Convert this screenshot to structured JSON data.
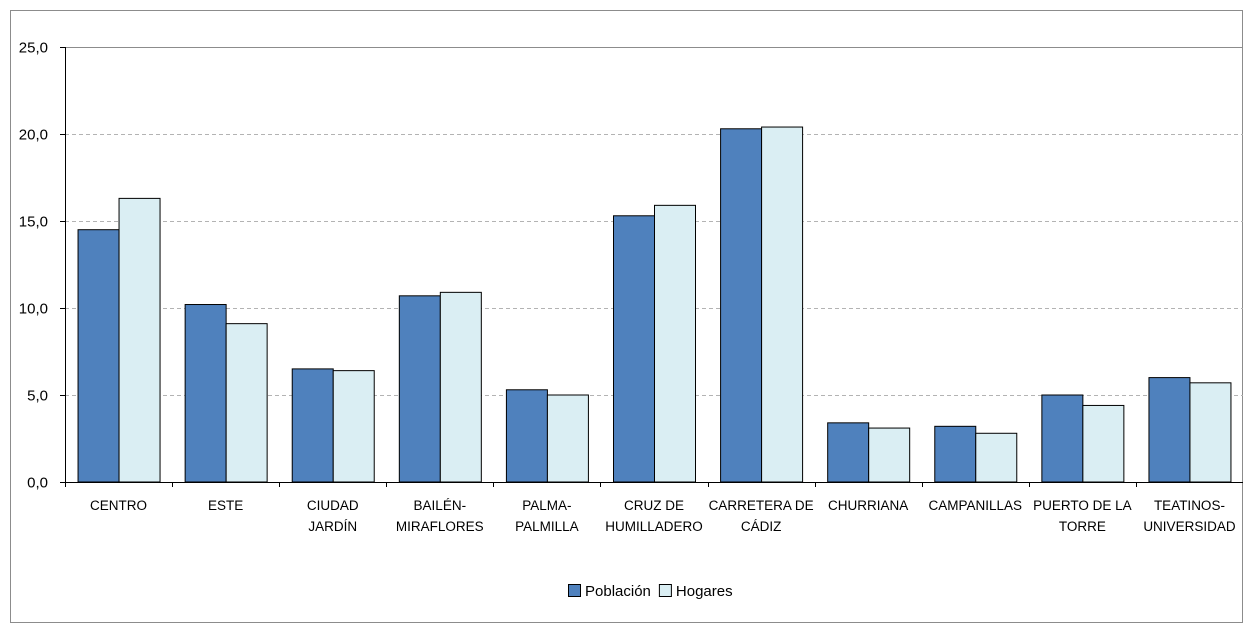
{
  "chart_data": {
    "type": "bar",
    "categories": [
      [
        "CENTRO"
      ],
      [
        "ESTE"
      ],
      [
        "CIUDAD",
        "JARDÍN"
      ],
      [
        "BAILÉN-",
        "MIRAFLORES"
      ],
      [
        "PALMA-",
        "PALMILLA"
      ],
      [
        "CRUZ DE",
        "HUMILLADERO"
      ],
      [
        "CARRETERA DE",
        "CÁDIZ"
      ],
      [
        "CHURRIANA"
      ],
      [
        "CAMPANILLAS"
      ],
      [
        "PUERTO DE LA",
        "TORRE"
      ],
      [
        "TEATINOS-",
        "UNIVERSIDAD"
      ]
    ],
    "series": [
      {
        "name": "Población",
        "color": "#4F81BD",
        "values": [
          14.5,
          10.2,
          6.5,
          10.7,
          5.3,
          15.3,
          20.3,
          3.4,
          3.2,
          5.0,
          6.0
        ]
      },
      {
        "name": "Hogares",
        "color": "#DAEEF3",
        "values": [
          16.3,
          9.1,
          6.4,
          10.9,
          5.0,
          15.9,
          20.4,
          3.1,
          2.8,
          4.4,
          5.7
        ]
      }
    ],
    "ylim": [
      0,
      25
    ],
    "yticks": [
      "0,0",
      "5,0",
      "10,0",
      "15,0",
      "20,0",
      "25,0"
    ],
    "ytick_values": [
      0,
      5,
      10,
      15,
      20,
      25
    ],
    "grid": true,
    "legend_position": "bottom-center"
  }
}
